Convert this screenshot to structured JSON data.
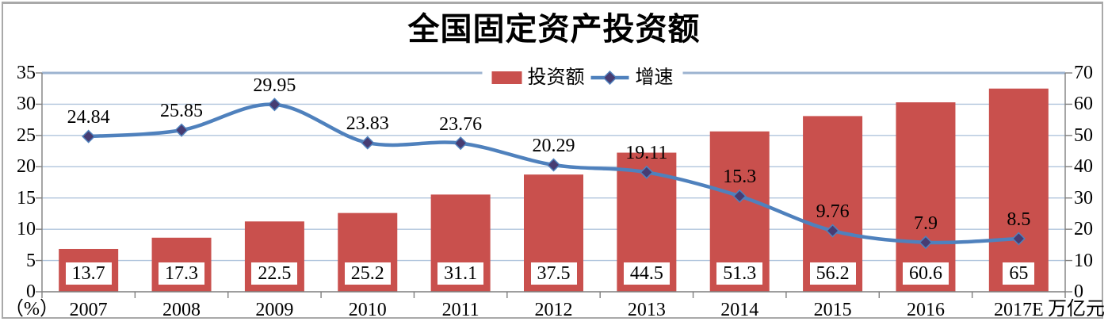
{
  "title": "全国固定资产投资额",
  "legend": [
    {
      "label": "投资额",
      "type": "bar"
    },
    {
      "label": "增速",
      "type": "line"
    }
  ],
  "axes": {
    "left_unit": "（%）",
    "right_unit": "万亿元",
    "left_tick_labels": [
      "35",
      "30",
      "25",
      "20",
      "15",
      "10",
      "5",
      "0"
    ],
    "right_tick_labels": [
      "70",
      "60",
      "50",
      "40",
      "30",
      "20",
      "10",
      "0"
    ]
  },
  "colors": {
    "bar": "#c9504d",
    "line": "#4f81bd",
    "marker_fill": "#473c72",
    "marker_stroke": "#4f81bd",
    "gridline": "#b0c4dc",
    "top_gridline": "#9cb3d0",
    "axis_line": "#7f7f7f",
    "frame": "#a9a9a9",
    "label_text": "#000000"
  },
  "chart_data": {
    "type": "bar",
    "subtype": "combo-bar-line",
    "title": "全国固定资产投资额",
    "categories": [
      "2007",
      "2008",
      "2009",
      "2010",
      "2011",
      "2012",
      "2013",
      "2014",
      "2015",
      "2016",
      "2017E"
    ],
    "series": [
      {
        "name": "投资额",
        "type": "bar",
        "axis": "right",
        "unit": "万亿元",
        "values": [
          13.7,
          17.3,
          22.5,
          25.2,
          31.1,
          37.5,
          44.5,
          51.3,
          56.2,
          60.6,
          65
        ]
      },
      {
        "name": "增速",
        "type": "line",
        "axis": "left",
        "unit": "%",
        "smooth": true,
        "marker": "diamond",
        "values": [
          24.84,
          25.85,
          29.95,
          23.83,
          23.76,
          20.29,
          19.11,
          15.3,
          9.76,
          7.9,
          8.5
        ]
      }
    ],
    "left_axis": {
      "min": 0,
      "max": 35,
      "step": 5,
      "label": "（%）"
    },
    "right_axis": {
      "min": 0,
      "max": 70,
      "step": 10,
      "label": "万亿元"
    },
    "grid": true,
    "legend_position": "top-center"
  }
}
